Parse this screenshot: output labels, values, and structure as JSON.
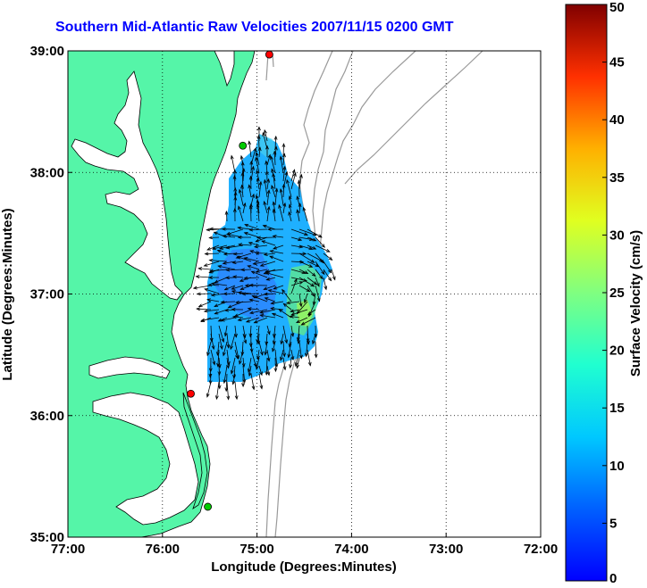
{
  "chart_data": {
    "type": "vector-field",
    "title": "Southern Mid-Atlantic Raw Velocities 2007/11/15 0200 GMT",
    "xlabel": "Longitude (Degrees:Minutes)",
    "ylabel": "Latitude (Degrees:Minutes)",
    "xlim": [
      -77,
      -72
    ],
    "ylim": [
      35,
      39
    ],
    "xticks": [
      {
        "value": -77,
        "label": "77:00"
      },
      {
        "value": -76,
        "label": "76:00"
      },
      {
        "value": -75,
        "label": "75:00"
      },
      {
        "value": -74,
        "label": "74:00"
      },
      {
        "value": -73,
        "label": "73:00"
      },
      {
        "value": -72,
        "label": "72:00"
      }
    ],
    "yticks": [
      {
        "value": 35,
        "label": "35:00"
      },
      {
        "value": 36,
        "label": "36:00"
      },
      {
        "value": 37,
        "label": "37:00"
      },
      {
        "value": 38,
        "label": "38:00"
      },
      {
        "value": 39,
        "label": "39:00"
      }
    ],
    "grid": "dotted",
    "colorbar": {
      "label": "Surface Velocity (cm/s)",
      "range": [
        0,
        50
      ],
      "ticks": [
        {
          "value": 0,
          "label": "0"
        },
        {
          "value": 5,
          "label": "5"
        },
        {
          "value": 10,
          "label": "10"
        },
        {
          "value": 15,
          "label": "15"
        },
        {
          "value": 20,
          "label": "20"
        },
        {
          "value": 25,
          "label": "25"
        },
        {
          "value": 30,
          "label": "30"
        },
        {
          "value": 35,
          "label": "35"
        },
        {
          "value": 40,
          "label": "40"
        },
        {
          "value": 45,
          "label": "45"
        },
        {
          "value": 50,
          "label": "50"
        }
      ],
      "colormap": "jet"
    },
    "stations": [
      {
        "lon": -74.87,
        "lat": 38.97,
        "color": "#ff0000"
      },
      {
        "lon": -75.15,
        "lat": 38.22,
        "color": "#00cc00"
      },
      {
        "lon": -75.7,
        "lat": 36.18,
        "color": "#ff0000"
      },
      {
        "lon": -75.52,
        "lat": 35.25,
        "color": "#00cc00"
      }
    ],
    "colors": {
      "land": "#55f5a8",
      "water": "#ffffff",
      "coastline": "#000000",
      "bathymetry": "#999999",
      "title": "#0000ff"
    }
  }
}
